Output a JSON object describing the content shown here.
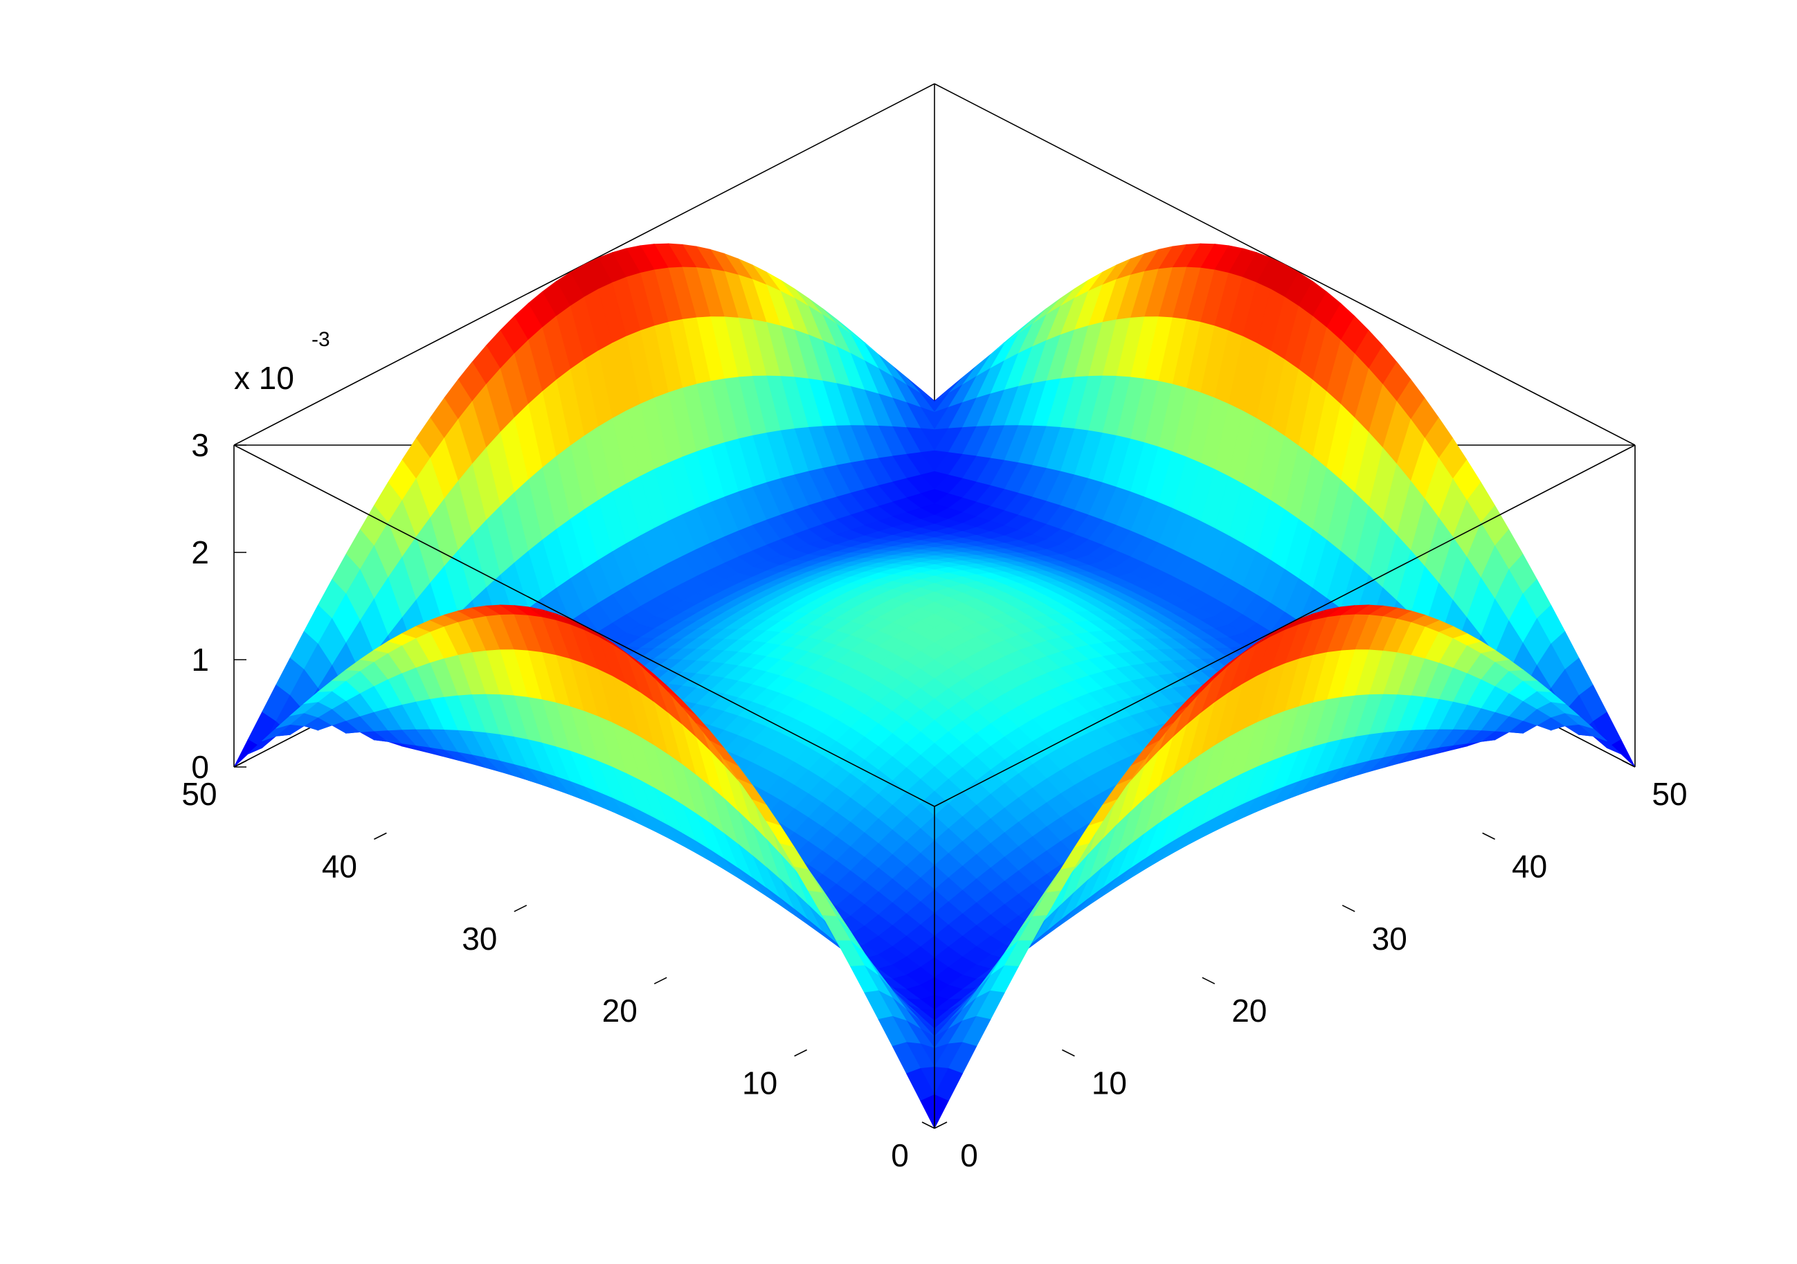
{
  "chart_data": {
    "type": "surface",
    "colormap": "jet",
    "view": "isometric 3D",
    "grid": false,
    "x_axis": {
      "range": [
        0,
        50
      ],
      "ticks": [
        0,
        10,
        20,
        30,
        40,
        50
      ],
      "tick_labels": [
        "0",
        "10",
        "20",
        "30",
        "40",
        "50"
      ]
    },
    "y_axis": {
      "range": [
        0,
        50
      ],
      "ticks": [
        0,
        10,
        20,
        30,
        40,
        50
      ],
      "tick_labels": [
        "0",
        "10",
        "20",
        "30",
        "40",
        "50"
      ]
    },
    "z_axis": {
      "range": [
        0,
        0.003
      ],
      "ticks": [
        0,
        1,
        2,
        3
      ],
      "tick_labels": [
        "0",
        "1",
        "2",
        "3"
      ],
      "exponent_label": "x 10",
      "exponent": "-3"
    },
    "features": {
      "edge_peak_value": 0.003,
      "center_value": 0.0013,
      "corner_value": 0.0,
      "description_peaks": "four arch-shaped ridges, one along each side of the square domain, peaking at the side midpoints"
    }
  }
}
